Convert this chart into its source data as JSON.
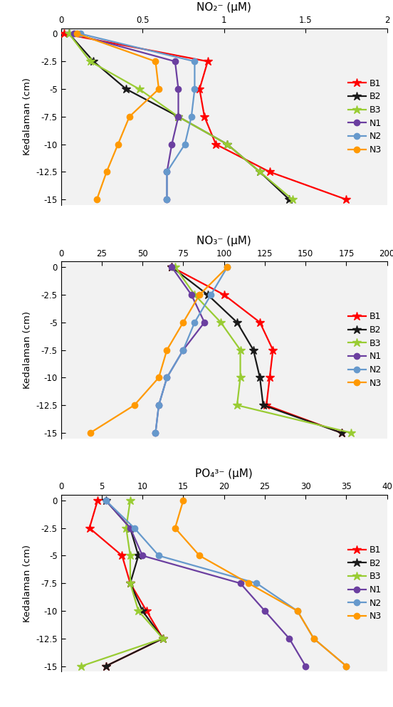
{
  "depth": [
    0,
    -2.5,
    -5,
    -7.5,
    -10,
    -12.5,
    -15
  ],
  "no2": {
    "title": "NO₂⁻ (μM)",
    "xlim": [
      0,
      2
    ],
    "xticks": [
      0,
      0.5,
      1,
      1.5,
      2
    ],
    "xticklabels": [
      "0",
      "0.5",
      "1",
      "1.5",
      "2"
    ],
    "B1": [
      0.02,
      0.9,
      0.85,
      0.88,
      0.95,
      1.28,
      1.75
    ],
    "B2": [
      0.05,
      0.2,
      0.4,
      0.72,
      1.02,
      1.22,
      1.4
    ],
    "B3": [
      0.05,
      0.18,
      0.48,
      0.72,
      1.02,
      1.22,
      1.42
    ],
    "N1": [
      0.08,
      0.7,
      0.72,
      0.72,
      0.68,
      0.65,
      0.65
    ],
    "N2": [
      0.12,
      0.82,
      0.82,
      0.8,
      0.76,
      0.65,
      0.65
    ],
    "N3": [
      0.1,
      0.58,
      0.6,
      0.42,
      0.35,
      0.28,
      0.22
    ]
  },
  "no3": {
    "title": "NO₃⁻ (μM)",
    "xlim": [
      0,
      200
    ],
    "xticks": [
      0,
      25,
      50,
      75,
      100,
      125,
      150,
      175,
      200
    ],
    "xticklabels": [
      "0",
      "25",
      "50",
      "75",
      "100",
      "125",
      "150",
      "175",
      "200"
    ],
    "B1": [
      68,
      100,
      122,
      130,
      128,
      126,
      172
    ],
    "B2": [
      68,
      90,
      108,
      118,
      122,
      124,
      172
    ],
    "B3": [
      70,
      82,
      98,
      110,
      110,
      108,
      178
    ],
    "N1": [
      68,
      80,
      88,
      75,
      65,
      60,
      58
    ],
    "N2": [
      102,
      92,
      82,
      75,
      65,
      60,
      58
    ],
    "N3": [
      102,
      85,
      75,
      65,
      60,
      45,
      18
    ]
  },
  "po4": {
    "title": "PO₄³⁻ (μM)",
    "xlim": [
      0,
      40
    ],
    "xticks": [
      0,
      5,
      10,
      15,
      20,
      25,
      30,
      35,
      40
    ],
    "xticklabels": [
      "0",
      "5",
      "10",
      "15",
      "20",
      "25",
      "30",
      "35",
      "40"
    ],
    "B1": [
      4.5,
      3.5,
      7.5,
      8.5,
      10.5,
      12.5,
      5.5
    ],
    "B2": [
      5.5,
      8.5,
      9.5,
      8.5,
      10.0,
      12.5,
      5.5
    ],
    "B3": [
      8.5,
      8.0,
      8.5,
      8.5,
      9.5,
      12.5,
      2.5
    ],
    "N1": [
      5.5,
      8.5,
      10.0,
      22.0,
      25.0,
      28.0,
      30.0
    ],
    "N2": [
      5.5,
      9.0,
      12.0,
      24.0,
      29.0,
      31.0,
      35.0
    ],
    "N3": [
      15.0,
      14.0,
      17.0,
      23.0,
      29.0,
      31.0,
      35.0
    ]
  },
  "colors": {
    "B1": "#FF0000",
    "B2": "#1A1A1A",
    "B3": "#99CC33",
    "N1": "#6B3FA0",
    "N2": "#6699CC",
    "N3": "#FF9900"
  },
  "ylabel": "Kedalaman (cm)",
  "series_keys": [
    "B1",
    "B2",
    "B3",
    "N1",
    "N2",
    "N3"
  ],
  "bioturbasi_keys": [
    "B1",
    "B2",
    "B3"
  ],
  "non_bioturbasi_keys": [
    "N1",
    "N2",
    "N3"
  ]
}
